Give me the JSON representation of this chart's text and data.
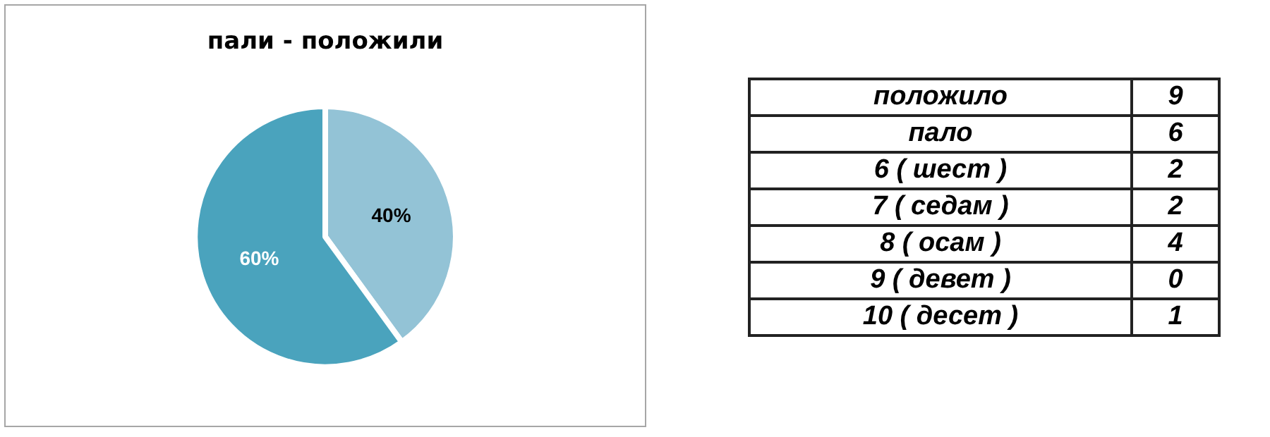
{
  "chart_data": [
    {
      "type": "pie",
      "title": "пали - положили",
      "categories": [
        null,
        null
      ],
      "values": [
        40,
        60
      ],
      "colors": [
        "#93c3d6",
        "#4aa3bd"
      ],
      "value_labels": [
        "40%",
        "60%"
      ]
    },
    {
      "type": "other",
      "categories": [
        "положило",
        "пало",
        "6 ( шест )",
        "7 ( седам )",
        "8 ( осам )",
        "9 ( девет )",
        "10 ( десет )"
      ],
      "values": [
        9,
        6,
        2,
        2,
        4,
        0,
        1
      ],
      "data_labels": true
    }
  ]
}
